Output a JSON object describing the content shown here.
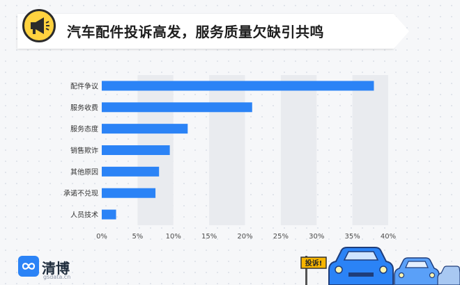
{
  "title": "汽车配件投诉高发，服务质量欠缺引共鸣",
  "brand": {
    "name": "清博",
    "domain": "gsdata.cn"
  },
  "sign_text": "投诉!",
  "icons": {
    "title_icon": "megaphone-icon",
    "brand_icon": "infinity-logo-icon"
  },
  "colors": {
    "bar": "#2b83f6",
    "banner": "#ffffff",
    "title_icon_bg": "#ffd23f",
    "cars": "#2b83f6",
    "sign": "#f7b500"
  },
  "chart_data": {
    "type": "bar",
    "orientation": "horizontal",
    "categories": [
      "配件争议",
      "服务收费",
      "服务态度",
      "销售欺诈",
      "其他原因",
      "承诺不兑现",
      "人员技术"
    ],
    "values": [
      38,
      21,
      12,
      9.5,
      8,
      7.5,
      2
    ],
    "xlim": [
      0,
      40
    ],
    "xticks": [
      0,
      5,
      10,
      15,
      20,
      25,
      30,
      35,
      40
    ],
    "xtick_labels": [
      "0%",
      "5%",
      "10%",
      "15%",
      "20%",
      "25%",
      "30%",
      "35%",
      "40%"
    ],
    "grid": "vertical bands"
  }
}
